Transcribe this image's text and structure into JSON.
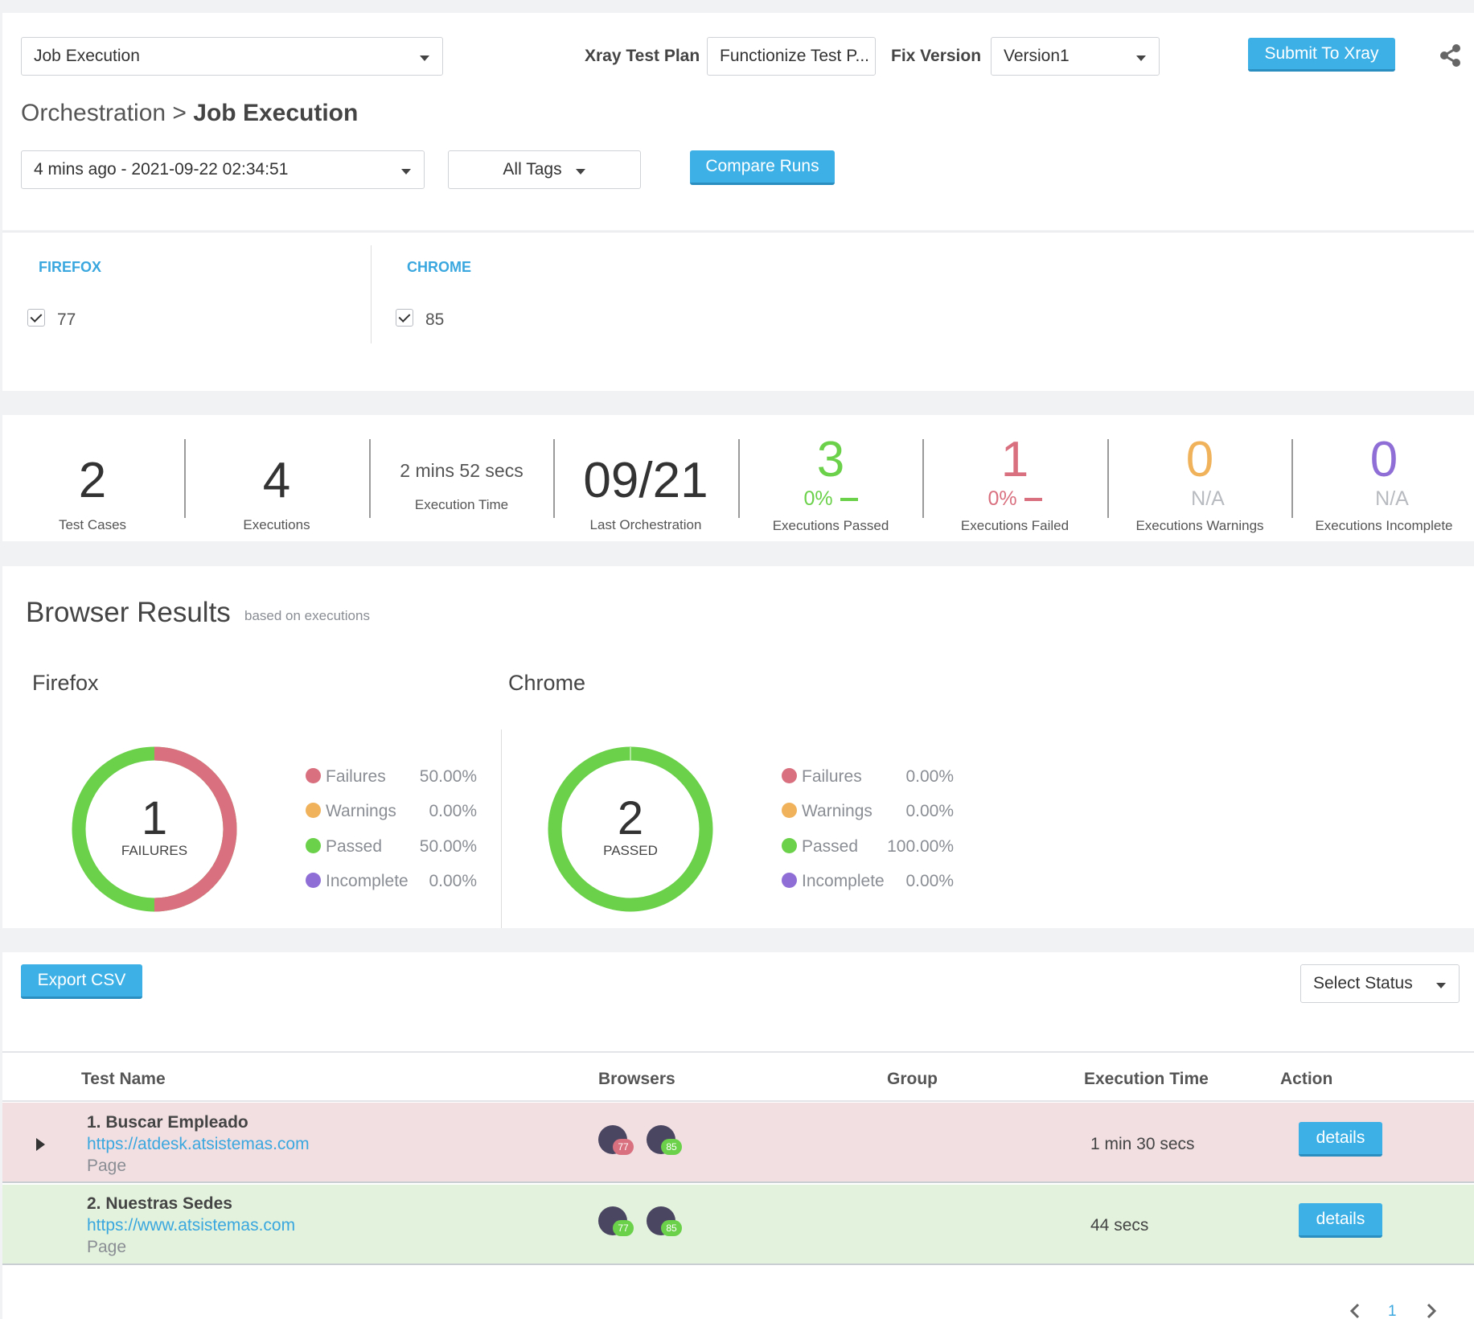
{
  "header": {
    "job_select": "Job Execution",
    "xray_test_plan_label": "Xray Test Plan",
    "xray_test_plan_value": "Functionize Test P...",
    "fix_version_label": "Fix Version",
    "fix_version_value": "Version1",
    "submit_label": "Submit To Xray"
  },
  "breadcrumb": {
    "parent": "Orchestration >",
    "current": "Job Execution"
  },
  "filters": {
    "run_select": "4 mins ago - 2021-09-22 02:34:51",
    "tags_select": "All Tags",
    "compare_label": "Compare Runs"
  },
  "browsers": [
    {
      "name": "FIREFOX",
      "version": "77"
    },
    {
      "name": "CHROME",
      "version": "85"
    }
  ],
  "stats": {
    "test_cases": {
      "value": "2",
      "label": "Test Cases"
    },
    "executions": {
      "value": "4",
      "label": "Executions"
    },
    "exec_time": {
      "value": "2 mins 52 secs",
      "label": "Execution Time"
    },
    "last_orch": {
      "value": "09/21",
      "label": "Last Orchestration"
    },
    "passed": {
      "value": "3",
      "pct": "0%",
      "label": "Executions Passed"
    },
    "failed": {
      "value": "1",
      "pct": "0%",
      "label": "Executions Failed"
    },
    "warnings": {
      "value": "0",
      "pct": "N/A",
      "label": "Executions Warnings"
    },
    "incomplete": {
      "value": "0",
      "pct": "N/A",
      "label": "Executions Incomplete"
    }
  },
  "browser_results": {
    "title": "Browser Results",
    "subtitle": "based on executions",
    "firefox": {
      "title": "Firefox",
      "center_value": "1",
      "center_label": "FAILURES",
      "failures_fraction": 0.5,
      "legend": [
        {
          "label": "Failures",
          "value": "50.00%"
        },
        {
          "label": "Warnings",
          "value": "0.00%"
        },
        {
          "label": "Passed",
          "value": "50.00%"
        },
        {
          "label": "Incomplete",
          "value": "0.00%"
        }
      ]
    },
    "chrome": {
      "title": "Chrome",
      "center_value": "2",
      "center_label": "PASSED",
      "failures_fraction": 0,
      "legend": [
        {
          "label": "Failures",
          "value": "0.00%"
        },
        {
          "label": "Warnings",
          "value": "0.00%"
        },
        {
          "label": "Passed",
          "value": "100.00%"
        },
        {
          "label": "Incomplete",
          "value": "0.00%"
        }
      ]
    }
  },
  "colors": {
    "failures": "#d9707f",
    "warnings": "#f0b35c",
    "passed": "#6bd14a",
    "incomplete": "#8f6fd6",
    "accent": "#3db1e6"
  },
  "table": {
    "export_label": "Export CSV",
    "status_select": "Select Status",
    "headers": {
      "test_name": "Test Name",
      "browsers": "Browsers",
      "group": "Group",
      "exec_time": "Execution Time",
      "action": "Action"
    },
    "rows": [
      {
        "name": "1. Buscar Empleado",
        "url": "https://atdesk.atsistemas.com",
        "type": "Page",
        "ff": "77",
        "ch": "85",
        "time": "1 min 30 secs",
        "action": "details"
      },
      {
        "name": "2. Nuestras Sedes",
        "url": "https://www.atsistemas.com",
        "type": "Page",
        "ff": "77",
        "ch": "85",
        "time": "44 secs",
        "action": "details"
      }
    ],
    "page": "1"
  }
}
